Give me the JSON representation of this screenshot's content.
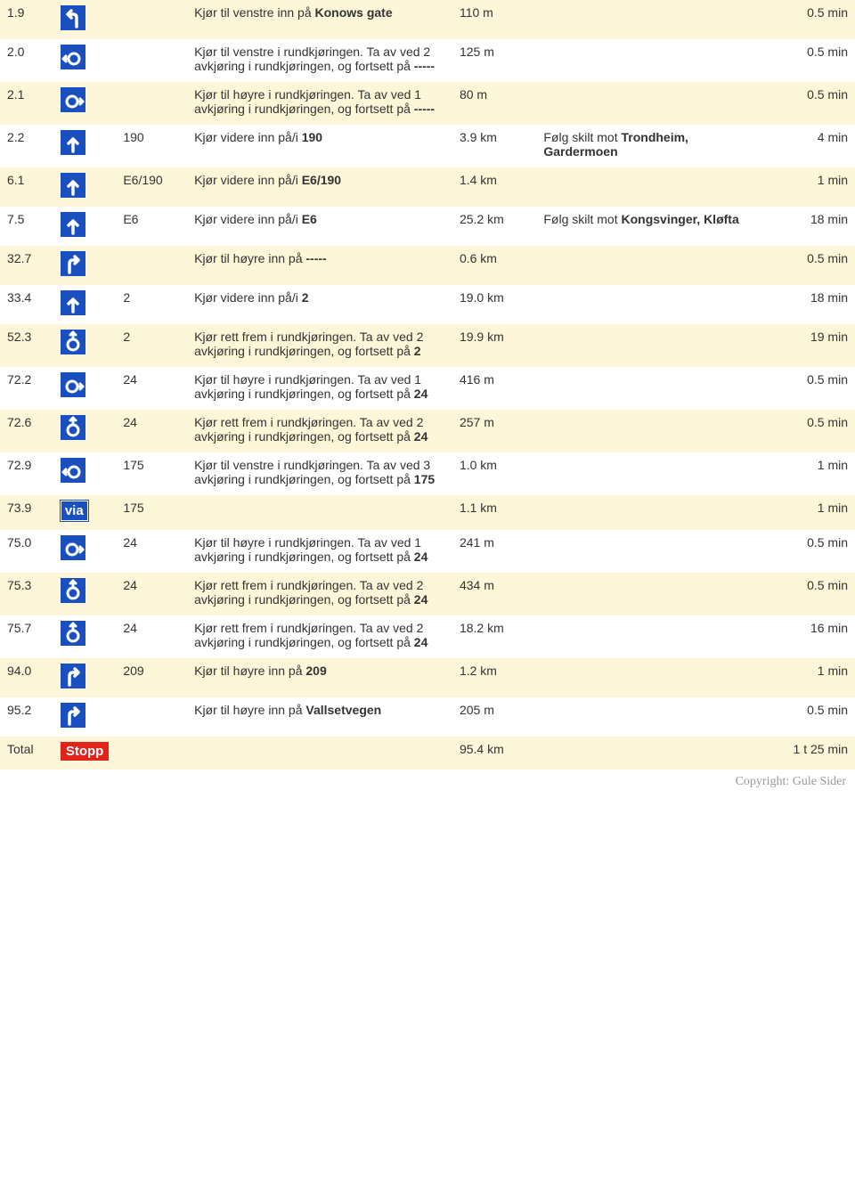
{
  "icon_bg": "#1a4fbf",
  "icon_fg": "#ffffff",
  "via_label": "via",
  "stop_label": "Stopp",
  "copyright": "Copyright: Gule Sider",
  "rows": [
    {
      "shade": "odd",
      "km": "1.9",
      "icon": "turn-left",
      "road": "",
      "instr_pre": "Kjør til venstre inn på ",
      "instr_bold": "Konows gate",
      "instr_post": "",
      "dist": "110 m",
      "signs_pre": "",
      "signs_bold": "",
      "time": "0.5 min"
    },
    {
      "shade": "even",
      "km": "2.0",
      "icon": "roundabout-left",
      "road": "",
      "instr_pre": "Kjør til venstre i rundkjøringen. Ta av ved 2 avkjøring i rundkjøringen, og fortsett på ",
      "instr_bold": "-----",
      "instr_post": "",
      "dist": "125 m",
      "signs_pre": "",
      "signs_bold": "",
      "time": "0.5 min"
    },
    {
      "shade": "odd",
      "km": "2.1",
      "icon": "roundabout-right",
      "road": "",
      "instr_pre": "Kjør til høyre i rundkjøringen. Ta av ved 1 avkjøring i rundkjøringen, og fortsett på ",
      "instr_bold": "-----",
      "instr_post": "",
      "dist": "80 m",
      "signs_pre": "",
      "signs_bold": "",
      "time": "0.5 min"
    },
    {
      "shade": "even",
      "km": "2.2",
      "icon": "straight",
      "road": "190",
      "instr_pre": "Kjør videre inn på/i ",
      "instr_bold": "190",
      "instr_post": "",
      "dist": "3.9 km",
      "signs_pre": "Følg skilt mot ",
      "signs_bold": "Trondheim, Gardermoen",
      "time": "4 min"
    },
    {
      "shade": "odd",
      "km": "6.1",
      "icon": "straight",
      "road": "E6/190",
      "instr_pre": "Kjør videre inn på/i ",
      "instr_bold": "E6/190",
      "instr_post": "",
      "dist": "1.4 km",
      "signs_pre": "",
      "signs_bold": "",
      "time": "1 min"
    },
    {
      "shade": "even",
      "km": "7.5",
      "icon": "straight",
      "road": "E6",
      "instr_pre": "Kjør videre inn på/i ",
      "instr_bold": "E6",
      "instr_post": "",
      "dist": "25.2 km",
      "signs_pre": "Følg skilt mot ",
      "signs_bold": "Kongsvinger, Kløfta",
      "time": "18 min"
    },
    {
      "shade": "odd",
      "km": "32.7",
      "icon": "turn-right",
      "road": "",
      "instr_pre": "Kjør til høyre inn på ",
      "instr_bold": "-----",
      "instr_post": "",
      "dist": "0.6 km",
      "signs_pre": "",
      "signs_bold": "",
      "time": "0.5 min"
    },
    {
      "shade": "even",
      "km": "33.4",
      "icon": "straight",
      "road": "2",
      "instr_pre": "Kjør videre inn på/i ",
      "instr_bold": "2",
      "instr_post": "",
      "dist": "19.0 km",
      "signs_pre": "",
      "signs_bold": "",
      "time": "18 min"
    },
    {
      "shade": "odd",
      "km": "52.3",
      "icon": "roundabout-straight",
      "road": "2",
      "instr_pre": "Kjør rett frem i rundkjøringen. Ta av ved 2 avkjøring i rundkjøringen, og fortsett på ",
      "instr_bold": "2",
      "instr_post": "",
      "dist": "19.9 km",
      "signs_pre": "",
      "signs_bold": "",
      "time": "19 min"
    },
    {
      "shade": "even",
      "km": "72.2",
      "icon": "roundabout-right",
      "road": "24",
      "instr_pre": "Kjør til høyre i rundkjøringen. Ta av ved 1 avkjøring i rundkjøringen, og fortsett på ",
      "instr_bold": "24",
      "instr_post": "",
      "dist": "416 m",
      "signs_pre": "",
      "signs_bold": "",
      "time": "0.5 min"
    },
    {
      "shade": "odd",
      "km": "72.6",
      "icon": "roundabout-straight",
      "road": "24",
      "instr_pre": "Kjør rett frem i rundkjøringen. Ta av ved 2 avkjøring i rundkjøringen, og fortsett på ",
      "instr_bold": "24",
      "instr_post": "",
      "dist": "257 m",
      "signs_pre": "",
      "signs_bold": "",
      "time": "0.5 min"
    },
    {
      "shade": "even",
      "km": "72.9",
      "icon": "roundabout-left",
      "road": "175",
      "instr_pre": "Kjør til venstre i rundkjøringen. Ta av ved 3 avkjøring i rundkjøringen, og fortsett på ",
      "instr_bold": "175",
      "instr_post": "",
      "dist": "1.0 km",
      "signs_pre": "",
      "signs_bold": "",
      "time": "1 min"
    },
    {
      "shade": "odd",
      "km": "73.9",
      "icon": "via",
      "road": "175",
      "instr_pre": "",
      "instr_bold": "",
      "instr_post": "",
      "dist": "1.1 km",
      "signs_pre": "",
      "signs_bold": "",
      "time": "1 min"
    },
    {
      "shade": "even",
      "km": "75.0",
      "icon": "roundabout-right",
      "road": "24",
      "instr_pre": "Kjør til høyre i rundkjøringen. Ta av ved 1 avkjøring i rundkjøringen, og fortsett på ",
      "instr_bold": "24",
      "instr_post": "",
      "dist": "241 m",
      "signs_pre": "",
      "signs_bold": "",
      "time": "0.5 min"
    },
    {
      "shade": "odd",
      "km": "75.3",
      "icon": "roundabout-straight",
      "road": "24",
      "instr_pre": "Kjør rett frem i rundkjøringen. Ta av ved 2 avkjøring i rundkjøringen, og fortsett på ",
      "instr_bold": "24",
      "instr_post": "",
      "dist": "434 m",
      "signs_pre": "",
      "signs_bold": "",
      "time": "0.5 min"
    },
    {
      "shade": "even",
      "km": "75.7",
      "icon": "roundabout-straight",
      "road": "24",
      "instr_pre": "Kjør rett frem i rundkjøringen. Ta av ved 2 avkjøring i rundkjøringen, og fortsett på ",
      "instr_bold": "24",
      "instr_post": "",
      "dist": "18.2 km",
      "signs_pre": "",
      "signs_bold": "",
      "time": "16 min"
    },
    {
      "shade": "odd",
      "km": "94.0",
      "icon": "turn-right",
      "road": "209",
      "instr_pre": "Kjør til høyre inn på ",
      "instr_bold": "209",
      "instr_post": "",
      "dist": "1.2 km",
      "signs_pre": "",
      "signs_bold": "",
      "time": "1 min"
    },
    {
      "shade": "even",
      "km": "95.2",
      "icon": "turn-right",
      "road": "",
      "instr_pre": "Kjør til høyre inn på ",
      "instr_bold": "Vallsetvegen",
      "instr_post": "",
      "dist": "205 m",
      "signs_pre": "",
      "signs_bold": "",
      "time": "0.5 min"
    },
    {
      "shade": "odd",
      "km": "Total",
      "icon": "stop",
      "road": "",
      "instr_pre": "",
      "instr_bold": "",
      "instr_post": "",
      "dist": "95.4 km",
      "signs_pre": "",
      "signs_bold": "",
      "time": "1 t 25 min"
    }
  ]
}
